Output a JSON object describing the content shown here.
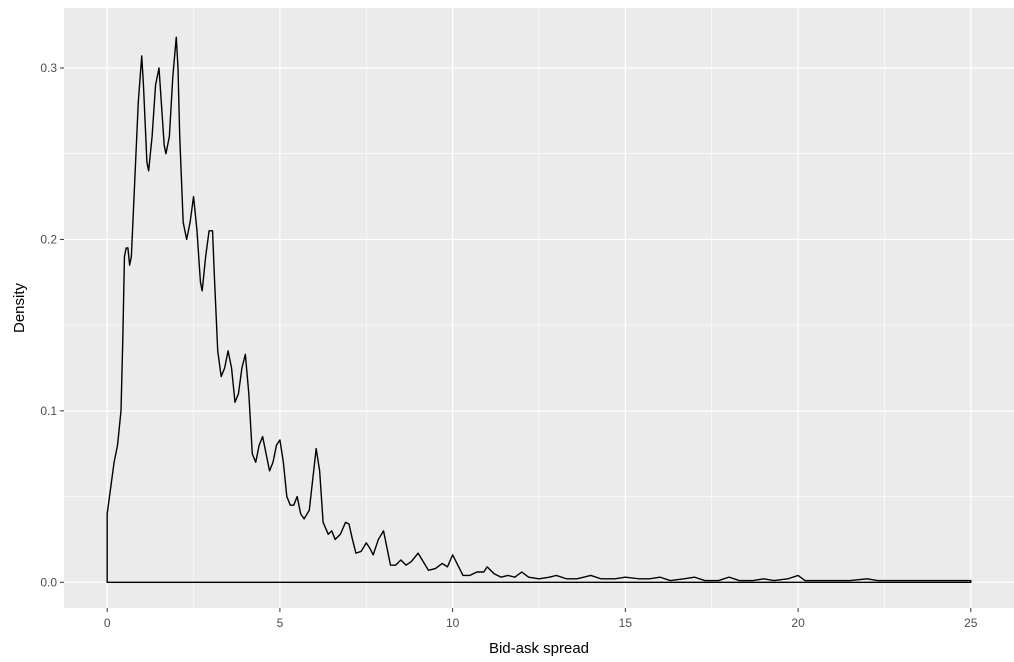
{
  "chart_data": {
    "type": "line",
    "title": "",
    "xlabel": "Bid-ask spread",
    "ylabel": "Density",
    "xlim": [
      -1.25,
      26.25
    ],
    "ylim": [
      -0.015,
      0.335
    ],
    "x_ticks": [
      0,
      5,
      10,
      15,
      20,
      25
    ],
    "x_tick_labels": [
      "0",
      "5",
      "10",
      "15",
      "20",
      "25"
    ],
    "y_ticks": [
      0.0,
      0.1,
      0.2,
      0.3
    ],
    "y_tick_labels": [
      "0.0",
      "0.1",
      "0.2",
      "0.3"
    ],
    "grid": true,
    "legend": "none",
    "panel_background": "#ebebeb",
    "grid_color": "#ffffff",
    "line_color": "#000000",
    "series": [
      {
        "points": [
          [
            0,
            0
          ],
          [
            0,
            0.04
          ],
          [
            0.1,
            0.055
          ],
          [
            0.2,
            0.07
          ],
          [
            0.3,
            0.08
          ],
          [
            0.35,
            0.09
          ],
          [
            0.4,
            0.1
          ],
          [
            0.45,
            0.14
          ],
          [
            0.5,
            0.19
          ],
          [
            0.55,
            0.195
          ],
          [
            0.6,
            0.195
          ],
          [
            0.65,
            0.185
          ],
          [
            0.7,
            0.19
          ],
          [
            0.8,
            0.235
          ],
          [
            0.9,
            0.28
          ],
          [
            1.0,
            0.307
          ],
          [
            1.05,
            0.29
          ],
          [
            1.15,
            0.245
          ],
          [
            1.2,
            0.24
          ],
          [
            1.3,
            0.26
          ],
          [
            1.4,
            0.29
          ],
          [
            1.5,
            0.3
          ],
          [
            1.55,
            0.285
          ],
          [
            1.65,
            0.255
          ],
          [
            1.7,
            0.25
          ],
          [
            1.8,
            0.26
          ],
          [
            1.9,
            0.295
          ],
          [
            2.0,
            0.318
          ],
          [
            2.05,
            0.3
          ],
          [
            2.1,
            0.26
          ],
          [
            2.2,
            0.21
          ],
          [
            2.3,
            0.2
          ],
          [
            2.4,
            0.21
          ],
          [
            2.5,
            0.225
          ],
          [
            2.6,
            0.205
          ],
          [
            2.7,
            0.175
          ],
          [
            2.75,
            0.17
          ],
          [
            2.85,
            0.19
          ],
          [
            2.95,
            0.205
          ],
          [
            3.05,
            0.205
          ],
          [
            3.1,
            0.18
          ],
          [
            3.2,
            0.135
          ],
          [
            3.3,
            0.12
          ],
          [
            3.4,
            0.125
          ],
          [
            3.5,
            0.135
          ],
          [
            3.6,
            0.125
          ],
          [
            3.7,
            0.105
          ],
          [
            3.8,
            0.11
          ],
          [
            3.9,
            0.125
          ],
          [
            4.0,
            0.133
          ],
          [
            4.1,
            0.11
          ],
          [
            4.2,
            0.075
          ],
          [
            4.3,
            0.07
          ],
          [
            4.4,
            0.08
          ],
          [
            4.5,
            0.085
          ],
          [
            4.6,
            0.075
          ],
          [
            4.7,
            0.065
          ],
          [
            4.8,
            0.07
          ],
          [
            4.9,
            0.08
          ],
          [
            5.0,
            0.083
          ],
          [
            5.1,
            0.07
          ],
          [
            5.2,
            0.05
          ],
          [
            5.3,
            0.045
          ],
          [
            5.4,
            0.045
          ],
          [
            5.5,
            0.05
          ],
          [
            5.6,
            0.04
          ],
          [
            5.7,
            0.037
          ],
          [
            5.85,
            0.042
          ],
          [
            5.95,
            0.06
          ],
          [
            6.05,
            0.078
          ],
          [
            6.15,
            0.065
          ],
          [
            6.25,
            0.035
          ],
          [
            6.4,
            0.028
          ],
          [
            6.5,
            0.03
          ],
          [
            6.6,
            0.025
          ],
          [
            6.75,
            0.028
          ],
          [
            6.9,
            0.035
          ],
          [
            7.0,
            0.034
          ],
          [
            7.1,
            0.025
          ],
          [
            7.2,
            0.017
          ],
          [
            7.35,
            0.018
          ],
          [
            7.5,
            0.023
          ],
          [
            7.6,
            0.02
          ],
          [
            7.7,
            0.016
          ],
          [
            7.85,
            0.025
          ],
          [
            8.0,
            0.03
          ],
          [
            8.1,
            0.02
          ],
          [
            8.2,
            0.01
          ],
          [
            8.35,
            0.01
          ],
          [
            8.5,
            0.013
          ],
          [
            8.65,
            0.01
          ],
          [
            8.8,
            0.012
          ],
          [
            9.0,
            0.017
          ],
          [
            9.15,
            0.012
          ],
          [
            9.3,
            0.007
          ],
          [
            9.5,
            0.008
          ],
          [
            9.7,
            0.011
          ],
          [
            9.85,
            0.009
          ],
          [
            10.0,
            0.016
          ],
          [
            10.15,
            0.01
          ],
          [
            10.3,
            0.004
          ],
          [
            10.5,
            0.004
          ],
          [
            10.7,
            0.006
          ],
          [
            10.9,
            0.006
          ],
          [
            11.0,
            0.009
          ],
          [
            11.2,
            0.005
          ],
          [
            11.4,
            0.003
          ],
          [
            11.6,
            0.004
          ],
          [
            11.8,
            0.003
          ],
          [
            12.0,
            0.006
          ],
          [
            12.2,
            0.003
          ],
          [
            12.5,
            0.002
          ],
          [
            12.8,
            0.003
          ],
          [
            13.0,
            0.004
          ],
          [
            13.3,
            0.002
          ],
          [
            13.6,
            0.002
          ],
          [
            14.0,
            0.004
          ],
          [
            14.3,
            0.002
          ],
          [
            14.7,
            0.002
          ],
          [
            15.0,
            0.003
          ],
          [
            15.4,
            0.002
          ],
          [
            15.7,
            0.002
          ],
          [
            16.0,
            0.003
          ],
          [
            16.3,
            0.001
          ],
          [
            16.7,
            0.002
          ],
          [
            17.0,
            0.003
          ],
          [
            17.3,
            0.001
          ],
          [
            17.7,
            0.001
          ],
          [
            18.0,
            0.003
          ],
          [
            18.3,
            0.001
          ],
          [
            18.7,
            0.001
          ],
          [
            19.0,
            0.002
          ],
          [
            19.3,
            0.001
          ],
          [
            19.7,
            0.002
          ],
          [
            20.0,
            0.004
          ],
          [
            20.2,
            0.001
          ],
          [
            20.6,
            0.001
          ],
          [
            21.0,
            0.001
          ],
          [
            21.5,
            0.001
          ],
          [
            22.0,
            0.002
          ],
          [
            22.3,
            0.001
          ],
          [
            23.0,
            0.001
          ],
          [
            24.0,
            0.001
          ],
          [
            25.0,
            0.001
          ],
          [
            25.0,
            0
          ]
        ]
      }
    ]
  }
}
